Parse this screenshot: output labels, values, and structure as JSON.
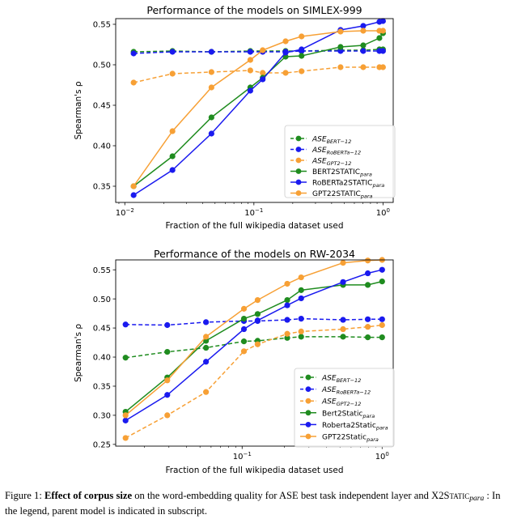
{
  "caption": {
    "label": "Figure 1:",
    "bold": "Effect of corpus size",
    "text1": " on the word-embedding quality for ASE best task independent layer and",
    "term_base": "X2S",
    "term_sc": "tatic",
    "term_sub": "para",
    "text2": " : In the legend, parent model is indicated in subscript."
  },
  "chart_data": [
    {
      "type": "line",
      "title": "Performance of the models on SIMLEX-999",
      "xlabel": "Fraction of the full wikipedia dataset used",
      "ylabel": "Spearman's ρ",
      "xscale": "log",
      "xlim": [
        0.0085,
        1.2
      ],
      "ylim": [
        0.33,
        0.557
      ],
      "xticks": [
        {
          "v": 0.01,
          "base": "10",
          "exp": "−2"
        },
        {
          "v": 0.1,
          "base": "10",
          "exp": "−1"
        },
        {
          "v": 1,
          "base": "10",
          "exp": "0"
        }
      ],
      "yticks": [
        0.35,
        0.4,
        0.45,
        0.5,
        0.55
      ],
      "ytick_labels": [
        "0.35",
        "0.40",
        "0.45",
        "0.50",
        "0.55"
      ],
      "grid": false,
      "legend_placement": "center-right",
      "x": [
        0.0117,
        0.0234,
        0.0469,
        0.0938,
        0.117,
        0.176,
        0.234,
        0.469,
        0.703,
        0.938,
        1.0
      ],
      "series": [
        {
          "name": "ASE",
          "sub": "BERT−12",
          "color": "#1f8c1f",
          "dashed": true,
          "values": [
            0.516,
            0.517,
            0.516,
            0.517,
            0.517,
            0.517,
            0.517,
            0.518,
            0.518,
            0.519,
            0.519
          ]
        },
        {
          "name": "ASE",
          "sub": "RoBERTa−12",
          "color": "#1a1aef",
          "dashed": true,
          "values": [
            0.514,
            0.516,
            0.516,
            0.516,
            0.516,
            0.516,
            0.517,
            0.517,
            0.517,
            0.517,
            0.517
          ]
        },
        {
          "name": "ASE",
          "sub": "GPT2−12",
          "color": "#f7a035",
          "dashed": true,
          "values": [
            0.478,
            0.489,
            0.491,
            0.493,
            0.49,
            0.49,
            0.492,
            0.497,
            0.497,
            0.497,
            0.497
          ]
        },
        {
          "name": "BERT2STATIC",
          "sub": "para",
          "color": "#1f8c1f",
          "dashed": false,
          "values": [
            0.35,
            0.387,
            0.435,
            0.472,
            0.484,
            0.51,
            0.511,
            0.522,
            0.524,
            0.533,
            0.539
          ]
        },
        {
          "name": "RoBERTa2STATIC",
          "sub": "para",
          "color": "#1a1aef",
          "dashed": false,
          "values": [
            0.339,
            0.37,
            0.415,
            0.468,
            0.482,
            0.515,
            0.519,
            0.543,
            0.548,
            0.553,
            0.554
          ]
        },
        {
          "name": "GPT22STATIC",
          "sub": "para",
          "color": "#f7a035",
          "dashed": false,
          "values": [
            0.35,
            0.418,
            0.472,
            0.506,
            0.518,
            0.529,
            0.535,
            0.541,
            0.542,
            0.542,
            0.542
          ]
        }
      ]
    },
    {
      "type": "line",
      "title": "Performance of the models on RW-2034",
      "xlabel": "Fraction of the full wikipedia dataset used",
      "ylabel": "Spearman's ρ",
      "xscale": "log",
      "xlim": [
        0.0125,
        1.2
      ],
      "ylim": [
        0.247,
        0.567
      ],
      "xticks": [
        {
          "v": 0.1,
          "base": "10",
          "exp": "−1"
        },
        {
          "v": 1,
          "base": "10",
          "exp": "0"
        }
      ],
      "yticks": [
        0.25,
        0.3,
        0.35,
        0.4,
        0.45,
        0.5,
        0.55
      ],
      "ytick_labels": [
        "0.25",
        "0.30",
        "0.35",
        "0.40",
        "0.45",
        "0.50",
        "0.55"
      ],
      "grid": false,
      "legend_placement": "lower-right",
      "x": [
        0.0147,
        0.0292,
        0.0552,
        0.103,
        0.129,
        0.21,
        0.264,
        0.526,
        0.79,
        1.0
      ],
      "series": [
        {
          "name": "ASE",
          "sub": "BERT−12",
          "color": "#1f8c1f",
          "dashed": true,
          "values": [
            0.399,
            0.409,
            0.416,
            0.427,
            0.428,
            0.433,
            0.435,
            0.435,
            0.434,
            0.434
          ]
        },
        {
          "name": "ASE",
          "sub": "RoBERTa−12",
          "color": "#1a1aef",
          "dashed": true,
          "values": [
            0.456,
            0.455,
            0.46,
            0.462,
            0.462,
            0.464,
            0.466,
            0.464,
            0.465,
            0.465
          ]
        },
        {
          "name": "ASE",
          "sub": "GPT2−12",
          "color": "#f7a035",
          "dashed": true,
          "values": [
            0.261,
            0.3,
            0.34,
            0.41,
            0.422,
            0.44,
            0.444,
            0.448,
            0.452,
            0.455
          ]
        },
        {
          "name": "Bert2Static",
          "sub": "para",
          "color": "#1f8c1f",
          "dashed": false,
          "values": [
            0.306,
            0.365,
            0.428,
            0.466,
            0.474,
            0.498,
            0.515,
            0.524,
            0.524,
            0.53
          ]
        },
        {
          "name": "Roberta2Static",
          "sub": "para",
          "color": "#1a1aef",
          "dashed": false,
          "values": [
            0.291,
            0.335,
            0.392,
            0.448,
            0.463,
            0.489,
            0.501,
            0.529,
            0.544,
            0.55
          ]
        },
        {
          "name": "GPT22Static",
          "sub": "para",
          "color": "#f7a035",
          "dashed": false,
          "values": [
            0.3,
            0.36,
            0.435,
            0.483,
            0.498,
            0.526,
            0.537,
            0.562,
            0.566,
            0.567
          ]
        }
      ]
    }
  ]
}
